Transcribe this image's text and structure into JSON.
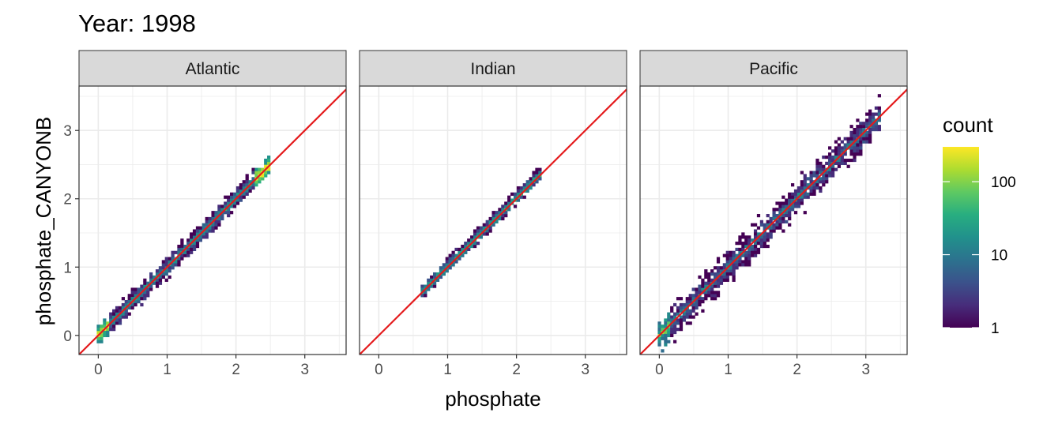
{
  "chart_data": {
    "type": "heatmap",
    "title": "Year: 1998",
    "xlabel": "phosphate",
    "ylabel": "phosphate_CANYONB",
    "xlim": [
      -0.28,
      3.6
    ],
    "ylim": [
      -0.28,
      3.65
    ],
    "x_ticks": [
      "0",
      "1",
      "2",
      "3"
    ],
    "y_ticks": [
      "0",
      "1",
      "2",
      "3"
    ],
    "grid": true,
    "reference_line": {
      "slope": 1,
      "intercept": 0,
      "color": "#e41a1c"
    },
    "facets": [
      {
        "label": "Atlantic",
        "x_range": [
          0,
          2.5
        ],
        "spread": 0.06
      },
      {
        "label": "Indian",
        "x_range": [
          0.65,
          2.4
        ],
        "spread": 0.04
      },
      {
        "label": "Pacific",
        "x_range": [
          0,
          3.2
        ],
        "spread": 0.1
      }
    ],
    "legend": {
      "title": "count",
      "position": "right",
      "scale": "log10",
      "range": [
        1,
        300
      ],
      "ticks": [
        "1",
        "10",
        "100"
      ],
      "colors": [
        "#440154",
        "#472d7b",
        "#3b528b",
        "#2c728e",
        "#21918c",
        "#28ae80",
        "#5ec962",
        "#addc30",
        "#fde725"
      ]
    }
  }
}
